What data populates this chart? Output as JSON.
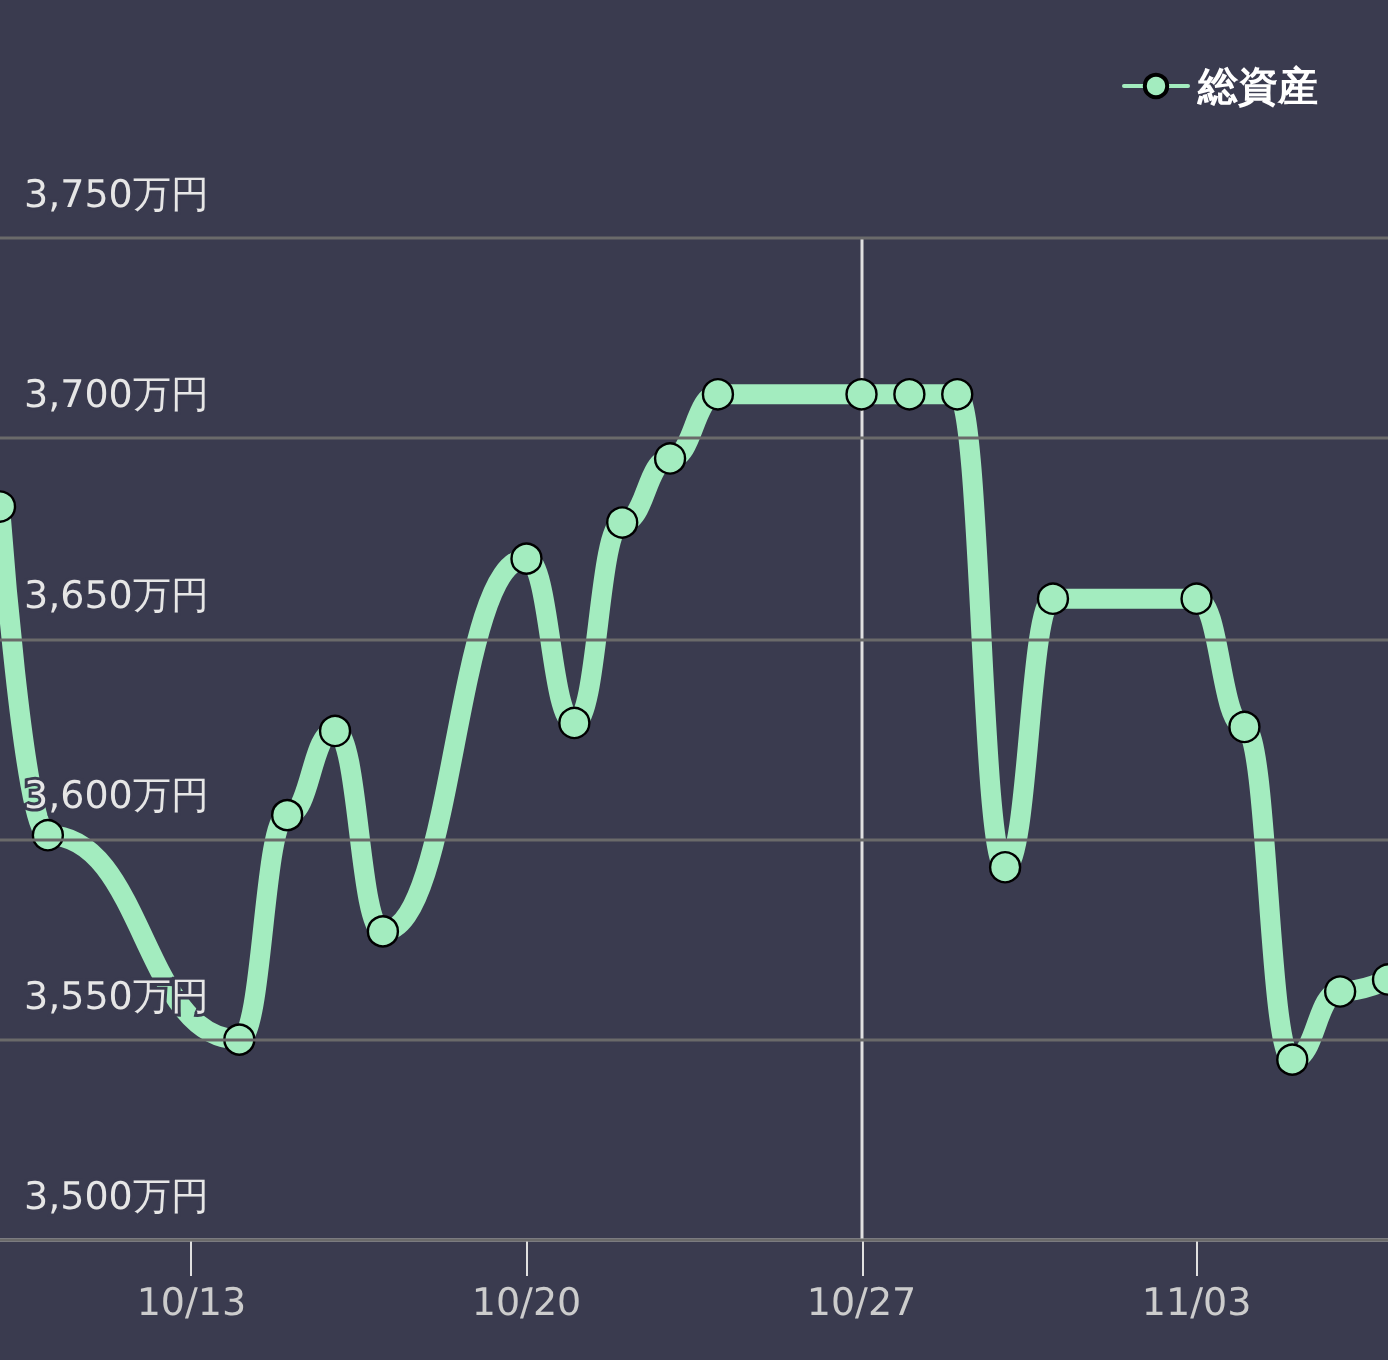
{
  "chart_data": {
    "type": "line",
    "x": [
      "--10-09",
      "--10-10",
      "--10-14",
      "--10-15",
      "--10-16",
      "--10-17",
      "--10-20",
      "--10-21",
      "--10-22",
      "--10-23",
      "--10-24",
      "--10-27",
      "--10-28",
      "--10-29",
      "--10-30",
      "--10-31",
      "--11-03",
      "--11-04",
      "--11-05",
      "--11-06",
      "--11-07"
    ],
    "series": [
      {
        "name": "総資産",
        "color": "#a3ecbf",
        "values": [
          3683,
          3601,
          3550,
          3606,
          3627,
          3577,
          3670,
          3629,
          3679,
          3695,
          3711,
          3711,
          3711,
          3711,
          3593,
          3660,
          3660,
          3628,
          3545,
          3562,
          3565
        ]
      }
    ],
    "xlim": [
      "--10-09",
      "--11-07"
    ],
    "xticks": [
      {
        "value": "--10-13",
        "label": "10/13"
      },
      {
        "value": "--10-20",
        "label": "10/20"
      },
      {
        "value": "--10-27",
        "label": "10/27"
      },
      {
        "value": "--11-03",
        "label": "11/03"
      }
    ],
    "ylim": [
      3500,
      3750
    ],
    "yticks": [
      {
        "value": 3500,
        "label": "3,500万円"
      },
      {
        "value": 3550,
        "label": "3,550万円"
      },
      {
        "value": 3600,
        "label": "3,600万円"
      },
      {
        "value": 3650,
        "label": "3,650万円"
      },
      {
        "value": 3700,
        "label": "3,700万円"
      },
      {
        "value": 3750,
        "label": "3,750万円"
      }
    ],
    "ref_lines": [
      {
        "axis": "x",
        "value": "--10-27",
        "color": "#e0e0e0"
      }
    ],
    "grid": "y",
    "legend": "top right",
    "marker": "circle",
    "line_style": "solid"
  }
}
